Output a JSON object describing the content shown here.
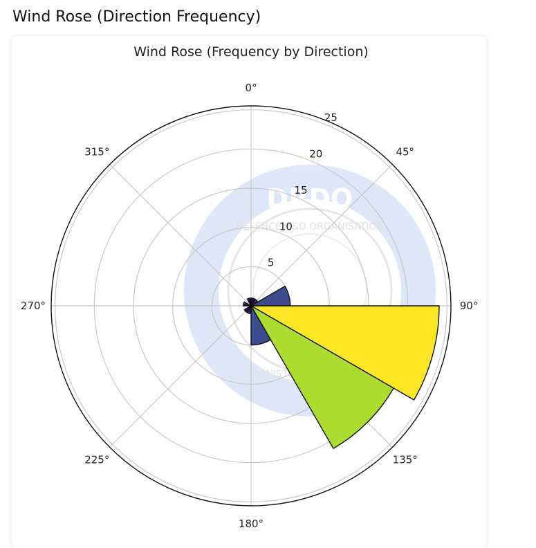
{
  "page": {
    "heading": "Wind Rose (Direction Frequency)"
  },
  "chart_data": {
    "type": "bar",
    "subtype": "polar",
    "title": "Wind Rose (Frequency by Direction)",
    "theta_direction": "clockwise",
    "theta_zero": "N",
    "angle_ticks": [
      "0°",
      "45°",
      "90°",
      "135°",
      "180°",
      "225°",
      "270°",
      "315°"
    ],
    "radial_ticks": [
      5,
      10,
      15,
      20,
      25
    ],
    "rlim": [
      0,
      25.5
    ],
    "bin_width_deg": 30,
    "categories": [
      "0°",
      "30°",
      "60°",
      "90°",
      "120°",
      "150°",
      "180°",
      "210°",
      "240°",
      "270°",
      "300°",
      "330°"
    ],
    "values": [
      1,
      1,
      5,
      24,
      21,
      5,
      1,
      1,
      0,
      1,
      0,
      1
    ],
    "bin_edges": [
      0,
      30,
      60,
      90,
      120,
      150,
      180,
      210,
      240,
      270,
      300,
      330,
      360
    ],
    "colors": [
      "#2b0f4f",
      "#3a2272",
      "#3d4b8f",
      "#fde725",
      "#addc30",
      "#3d4b8f",
      "#35226e",
      "#2b0f4f",
      "#440154",
      "#2a1a5e",
      "#440154",
      "#2b0f4f"
    ],
    "grid": true,
    "watermark": {
      "text_top": "DEFENCE R&D ORGANISATION",
      "text_bottom": "MINISTRY OF DEFENCE",
      "letters": "DRDO"
    }
  }
}
